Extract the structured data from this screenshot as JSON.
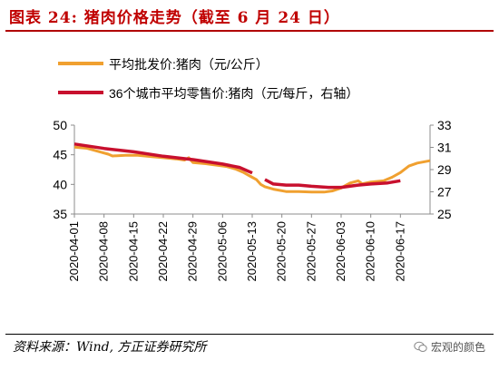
{
  "header": {
    "title": "图表 24:   猪肉价格走势（截至 6 月 24 日）"
  },
  "footer": {
    "source": "资料来源：Wind, 方正证券研究所",
    "watermark": "宏观的颜色"
  },
  "colors": {
    "title": "#c00000",
    "series1": "#f0a030",
    "series2": "#c8102e",
    "axis": "#8c8c8c"
  },
  "icons": {
    "watermark": "wechat-icon"
  },
  "chart_data": {
    "type": "line",
    "x_ticks": [
      "2020-04-01",
      "2020-04-08",
      "2020-04-15",
      "2020-04-22",
      "2020-04-29",
      "2020-05-06",
      "2020-05-13",
      "2020-05-20",
      "2020-05-27",
      "2020-06-03",
      "2020-06-10",
      "2020-06-17"
    ],
    "x_range": [
      "2020-04-01",
      "2020-06-24"
    ],
    "left_axis": {
      "ylim": [
        35,
        50
      ],
      "ticks": [
        35,
        40,
        45,
        50
      ]
    },
    "right_axis": {
      "ylim": [
        25,
        33
      ],
      "ticks": [
        25,
        27,
        29,
        31,
        33
      ]
    },
    "legend_position": "top-left",
    "series": [
      {
        "name": "平均批发价:猪肉（元/公斤）",
        "axis": "left",
        "points": [
          [
            "2020-04-01",
            46.3
          ],
          [
            "2020-04-04",
            46.1
          ],
          [
            "2020-04-07",
            45.5
          ],
          [
            "2020-04-09",
            45.1
          ],
          [
            "2020-04-10",
            44.8
          ],
          [
            "2020-04-13",
            44.9
          ],
          [
            "2020-04-16",
            44.9
          ],
          [
            "2020-04-19",
            44.7
          ],
          [
            "2020-04-22",
            44.5
          ],
          [
            "2020-04-25",
            44.3
          ],
          [
            "2020-04-27",
            44.1
          ],
          [
            "2020-04-28",
            44.5
          ],
          [
            "2020-04-29",
            43.7
          ],
          [
            "2020-05-02",
            43.5
          ],
          [
            "2020-05-05",
            43.2
          ],
          [
            "2020-05-07",
            43.0
          ],
          [
            "2020-05-09",
            42.6
          ],
          [
            "2020-05-11",
            42.0
          ],
          [
            "2020-05-12",
            41.6
          ],
          [
            "2020-05-13",
            41.2
          ],
          [
            "2020-05-14",
            40.8
          ],
          [
            "2020-05-15",
            40.0
          ],
          [
            "2020-05-16",
            39.6
          ],
          [
            "2020-05-18",
            39.2
          ],
          [
            "2020-05-21",
            38.8
          ],
          [
            "2020-05-24",
            38.8
          ],
          [
            "2020-05-27",
            38.7
          ],
          [
            "2020-05-30",
            38.7
          ],
          [
            "2020-06-01",
            38.9
          ],
          [
            "2020-06-03",
            39.4
          ],
          [
            "2020-06-05",
            40.2
          ],
          [
            "2020-06-07",
            40.6
          ],
          [
            "2020-06-08",
            40.1
          ],
          [
            "2020-06-10",
            40.4
          ],
          [
            "2020-06-13",
            40.6
          ],
          [
            "2020-06-15",
            41.2
          ],
          [
            "2020-06-17",
            42.0
          ],
          [
            "2020-06-19",
            43.1
          ],
          [
            "2020-06-21",
            43.6
          ],
          [
            "2020-06-24",
            44.0
          ]
        ]
      },
      {
        "name": "36个城市平均零售价:猪肉（元/每斤，右轴）",
        "axis": "right",
        "points": [
          [
            "2020-04-01",
            31.3
          ],
          [
            "2020-04-08",
            30.9
          ],
          [
            "2020-04-15",
            30.6
          ],
          [
            "2020-04-22",
            30.2
          ],
          [
            "2020-04-29",
            29.9
          ],
          [
            "2020-05-06",
            29.5
          ],
          [
            "2020-05-10",
            29.2
          ],
          [
            "2020-05-13",
            28.7
          ],
          null,
          [
            "2020-05-16",
            28.1
          ],
          [
            "2020-05-18",
            27.7
          ],
          [
            "2020-05-21",
            27.6
          ],
          [
            "2020-05-24",
            27.6
          ],
          [
            "2020-05-27",
            27.5
          ],
          [
            "2020-05-31",
            27.4
          ],
          [
            "2020-06-03",
            27.4
          ],
          [
            "2020-06-07",
            27.6
          ],
          [
            "2020-06-10",
            27.7
          ],
          [
            "2020-06-14",
            27.8
          ],
          [
            "2020-06-17",
            28.0
          ]
        ]
      }
    ]
  }
}
